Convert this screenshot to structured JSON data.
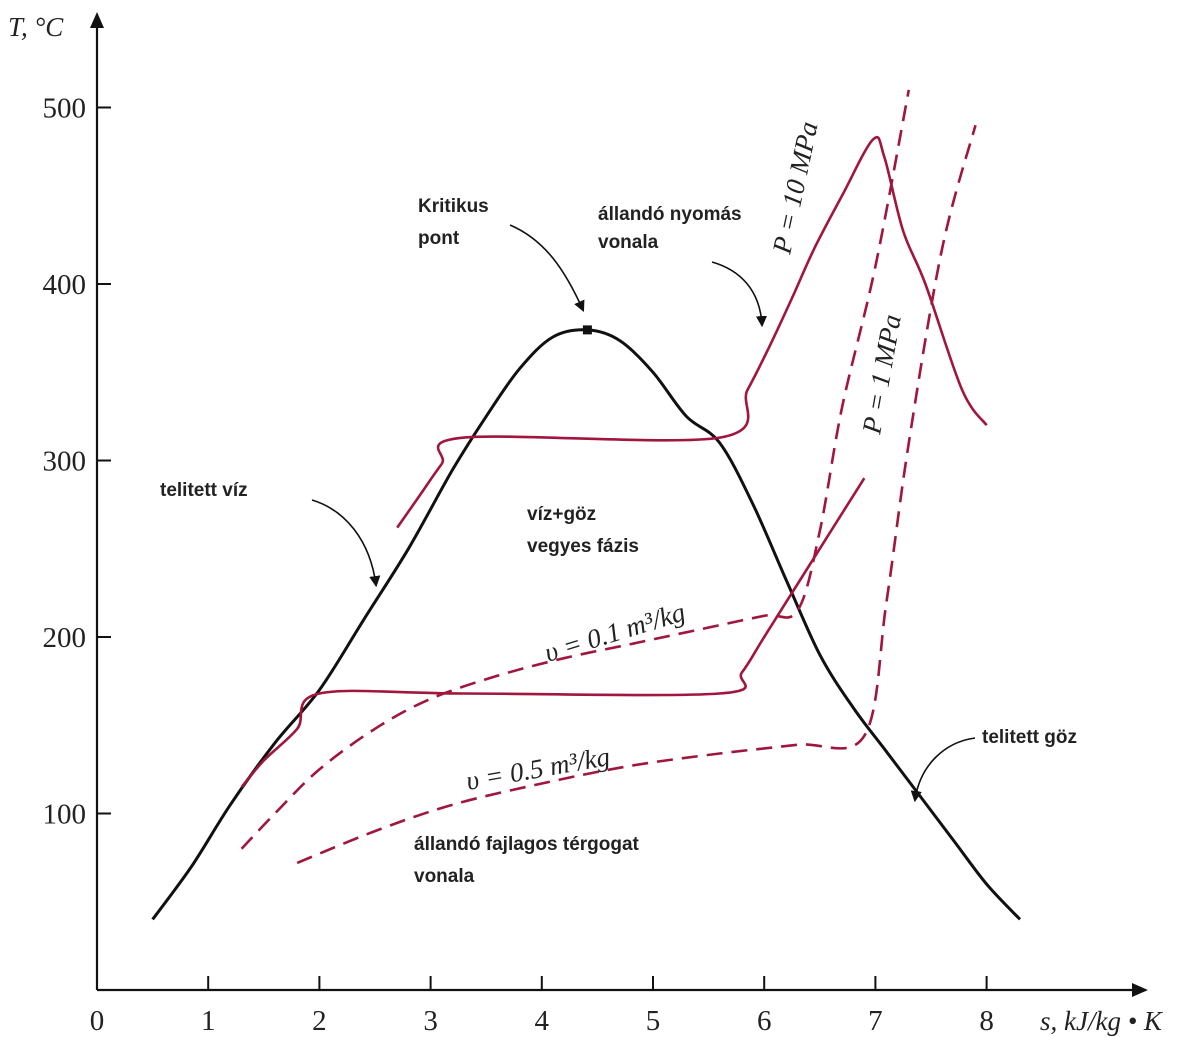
{
  "chart_data": {
    "type": "line",
    "title": "",
    "xlabel": "s, kJ/kg • K",
    "ylabel": "T, °C",
    "xlim": [
      0,
      9.3
    ],
    "ylim": [
      0,
      550
    ],
    "xticks": [
      0,
      1,
      2,
      3,
      4,
      5,
      6,
      7,
      8
    ],
    "yticks": [
      100,
      200,
      300,
      400,
      500
    ],
    "grid": false,
    "colors": {
      "axis": "#111111",
      "dome": "#111111",
      "isobar": "#a0163c",
      "isochore": "#a0163c"
    },
    "critical_point": {
      "x": 4.41,
      "y": 374
    },
    "series": [
      {
        "style": "solid",
        "color": "#111111",
        "x": [
          0.5,
          0.85,
          1.2,
          1.6,
          2.0,
          2.4,
          2.8,
          3.2,
          3.5,
          3.8,
          4.1,
          4.41,
          4.7,
          5.0,
          5.3,
          5.6,
          5.9,
          6.2,
          6.5,
          6.8,
          7.1,
          7.4,
          7.7,
          8.0,
          8.3
        ],
        "y": [
          40,
          70,
          105,
          140,
          170,
          210,
          250,
          295,
          325,
          352,
          370,
          374,
          368,
          350,
          325,
          310,
          275,
          232,
          190,
          160,
          135,
          110,
          85,
          60,
          40
        ]
      },
      {
        "style": "solid",
        "color": "#a0163c",
        "x": [
          1.3,
          1.5,
          1.8,
          2.0,
          3.3,
          5.6,
          5.8,
          6.0,
          6.3,
          6.6,
          6.9
        ],
        "y": [
          115,
          130,
          148,
          168,
          168,
          168,
          180,
          200,
          230,
          260,
          290
        ]
      },
      {
        "style": "solid",
        "color": "#a0163c",
        "x": [
          2.7,
          2.9,
          3.1,
          3.3,
          5.6,
          5.85,
          6.05,
          6.25,
          6.45,
          6.7,
          6.98,
          7.08,
          7.25,
          7.45,
          7.78,
          8.0
        ],
        "y": [
          262,
          280,
          298,
          313,
          313,
          340,
          365,
          392,
          420,
          450,
          482,
          472,
          430,
          400,
          340,
          320
        ]
      },
      {
        "style": "dashed",
        "color": "#a0163c",
        "x": [
          1.3,
          1.6,
          2.0,
          2.5,
          3.0,
          3.6,
          4.2,
          4.8,
          5.4,
          6.0,
          6.3,
          6.5,
          6.7,
          7.0,
          7.3
        ],
        "y": [
          80,
          100,
          125,
          148,
          165,
          178,
          188,
          196,
          204,
          212,
          215,
          260,
          330,
          410,
          510
        ]
      },
      {
        "style": "dashed",
        "color": "#a0163c",
        "x": [
          1.8,
          2.5,
          3.2,
          4.0,
          4.8,
          5.6,
          6.3,
          6.9,
          7.1,
          7.3,
          7.6,
          7.9
        ],
        "y": [
          72,
          90,
          105,
          117,
          127,
          134,
          139,
          144,
          220,
          310,
          420,
          490
        ]
      }
    ],
    "annotations": [
      {
        "id": "critical",
        "lines": [
          "Kritikus",
          "pont"
        ]
      },
      {
        "id": "isobar",
        "lines": [
          "állandó nyomás",
          "vonala"
        ]
      },
      {
        "id": "sat-water",
        "lines": [
          "telitett víz"
        ]
      },
      {
        "id": "mixture",
        "lines": [
          "víz+göz",
          "vegyes fázis"
        ]
      },
      {
        "id": "sat-vapor",
        "lines": [
          "telitett göz"
        ]
      },
      {
        "id": "isochore",
        "lines": [
          "állandó fajlagos térgogat",
          "vonala"
        ]
      }
    ],
    "curve_labels": {
      "p10": "P = 10 MPa",
      "p1": "P = 1 MPa",
      "v01": "υ = 0.1 m³/kg",
      "v05": "υ = 0.5 m³/kg"
    }
  }
}
